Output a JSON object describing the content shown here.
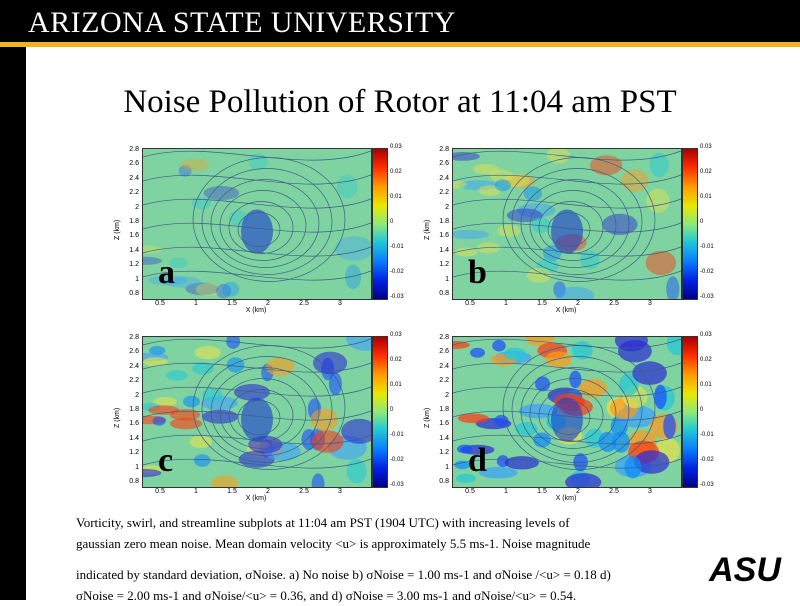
{
  "header": {
    "brand": "ARIZONA STATE UNIVERSITY",
    "colors": {
      "bar": "#000000",
      "accent": "#f0b323"
    }
  },
  "slide": {
    "title": "Noise Pollution of Rotor at 11:04 am PST"
  },
  "figure": {
    "ylabel": "Z (km)",
    "xlabel": "X (km)",
    "y_ticks": [
      "2.8",
      "2.6",
      "2.4",
      "2.2",
      "2",
      "1.8",
      "1.6",
      "1.4",
      "1.2",
      "1",
      "0.8"
    ],
    "x_ticks": [
      "0.5",
      "1",
      "1.5",
      "2",
      "2.5",
      "3"
    ],
    "colorbar_ticks": [
      "0.03",
      "0.02",
      "0.01",
      "0",
      "-0.01",
      "-0.02",
      "-0.03"
    ],
    "panels": [
      {
        "letter": "a"
      },
      {
        "letter": "b"
      },
      {
        "letter": "c"
      },
      {
        "letter": "d"
      }
    ]
  },
  "caption": {
    "line1": "Vorticity, swirl, and streamline subplots at 11:04 am PST (1904 UTC) with increasing levels of",
    "line2": "gaussian zero mean noise. Mean domain velocity <u> is approximately 5.5 ms-1. Noise magnitude",
    "line3": "indicated by standard deviation, σNoise. a) No noise b) σNoise = 1.00 ms-1 and σNoise /<u> = 0.18 d)",
    "line4": "σNoise = 2.00 ms-1 and σNoise/<u> = 0.36, and d) σNoise = 3.00 ms-1 and σNoise/<u> = 0.54."
  },
  "logo": {
    "text": "ASU"
  }
}
